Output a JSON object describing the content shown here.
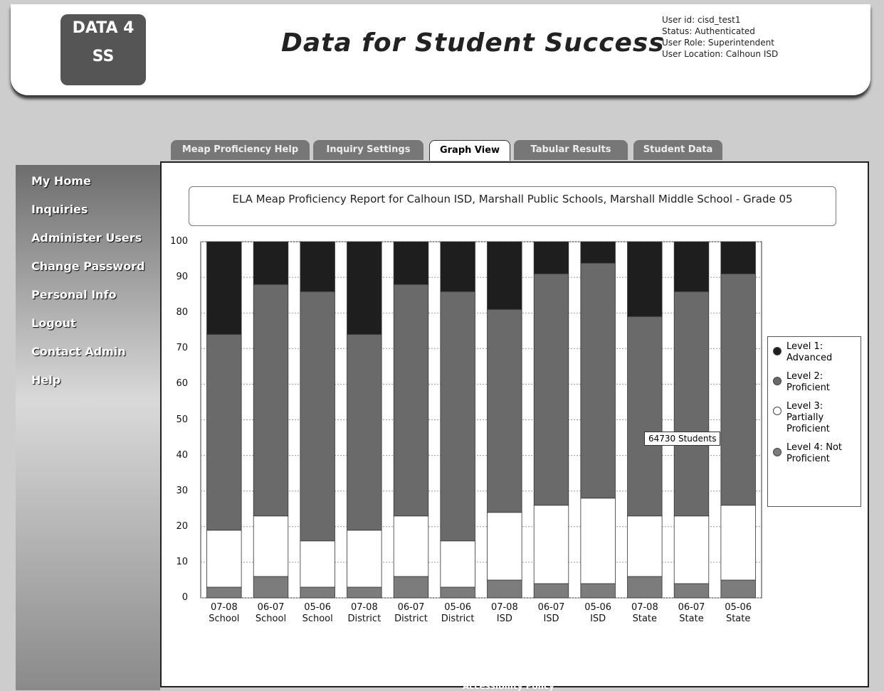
{
  "header": {
    "title": "Data for Student Success",
    "logo": "DATA 4 SS",
    "user_info": [
      "User id: cisd_test1",
      "Status: Authenticated",
      "User Role: Superintendent",
      "User Location: Calhoun ISD"
    ]
  },
  "nav": [
    "My Home",
    "Inquiries",
    "Administer Users",
    "Change Password",
    "Personal Info",
    "Logout",
    "Contact Admin",
    "Help"
  ],
  "tabs": [
    "Meap Proficiency Help",
    "Inquiry Settings",
    "Graph View",
    "Tabular Results",
    "Student Data"
  ],
  "active_tab": 2,
  "footer": "Accessibility Policy",
  "chart_data": {
    "type": "stacked_bar",
    "title": "ELA Meap Proficiency Report for Calhoun ISD, Marshall Public Schools, Marshall Middle School - Grade 05",
    "categories": [
      "07-08 School",
      "06-07 School",
      "05-06 School",
      "07-08 District",
      "06-07 District",
      "05-06 District",
      "07-08 ISD",
      "06-07 ISD",
      "05-06 ISD",
      "07-08 State",
      "06-07 State",
      "05-06 State"
    ],
    "series": [
      {
        "name": "Level 1: Advanced",
        "color": "#1e1e1e",
        "values": [
          26,
          12,
          14,
          26,
          12,
          14,
          19,
          9,
          6,
          21,
          14,
          9
        ]
      },
      {
        "name": "Level 2: Proficient",
        "color": "#6a6a6a",
        "values": [
          55,
          65,
          70,
          55,
          65,
          70,
          57,
          65,
          66,
          56,
          63,
          65
        ]
      },
      {
        "name": "Level 3: Partially Proficient",
        "color": "#ffffff",
        "values": [
          16,
          17,
          13,
          16,
          17,
          13,
          19,
          22,
          24,
          17,
          19,
          21
        ]
      },
      {
        "name": "Level 4: Not Proficient",
        "color": "#7c7c7c",
        "values": [
          3,
          6,
          3,
          3,
          6,
          3,
          5,
          4,
          4,
          6,
          4,
          5
        ]
      }
    ],
    "ylim": [
      0,
      100
    ],
    "yticks": [
      0,
      10,
      20,
      30,
      40,
      50,
      60,
      70,
      80,
      90,
      100
    ],
    "grid": true,
    "tooltip": "64730 Students"
  }
}
